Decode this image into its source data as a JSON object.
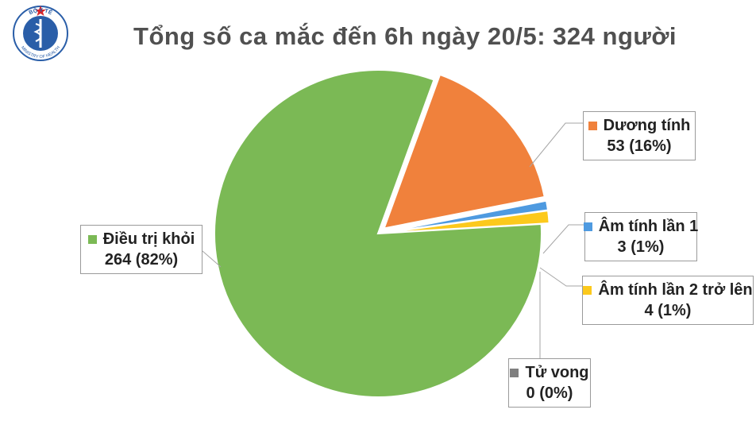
{
  "logo": {
    "top_text": "BỘ Y TẾ",
    "bottom_text": "MINISTRY OF HEALTH",
    "icon": "caduceus-icon"
  },
  "chart_data": {
    "type": "pie",
    "title": "Tổng số ca mắc đến 6h ngày 20/5: 324 người",
    "slices": [
      {
        "name": "Dương tính",
        "value": 53,
        "value_label": "53 (16%)",
        "color": "#f0813c",
        "exploded": true
      },
      {
        "name": "Âm tính lần 1",
        "value": 3,
        "value_label": "3 (1%)",
        "color": "#4e9ae0",
        "exploded": true
      },
      {
        "name": "Âm tính lần 2 trở lên",
        "value": 4,
        "value_label": "4 (1%)",
        "color": "#fcc91c",
        "exploded": true
      },
      {
        "name": "Tử vong",
        "value": 0,
        "value_label": "0 (0%)",
        "color": "#7f7f7f",
        "exploded": false
      },
      {
        "name": "Điều trị khỏi",
        "value": 264,
        "value_label": "264 (82%)",
        "color": "#7bb955",
        "exploded": false
      }
    ]
  }
}
